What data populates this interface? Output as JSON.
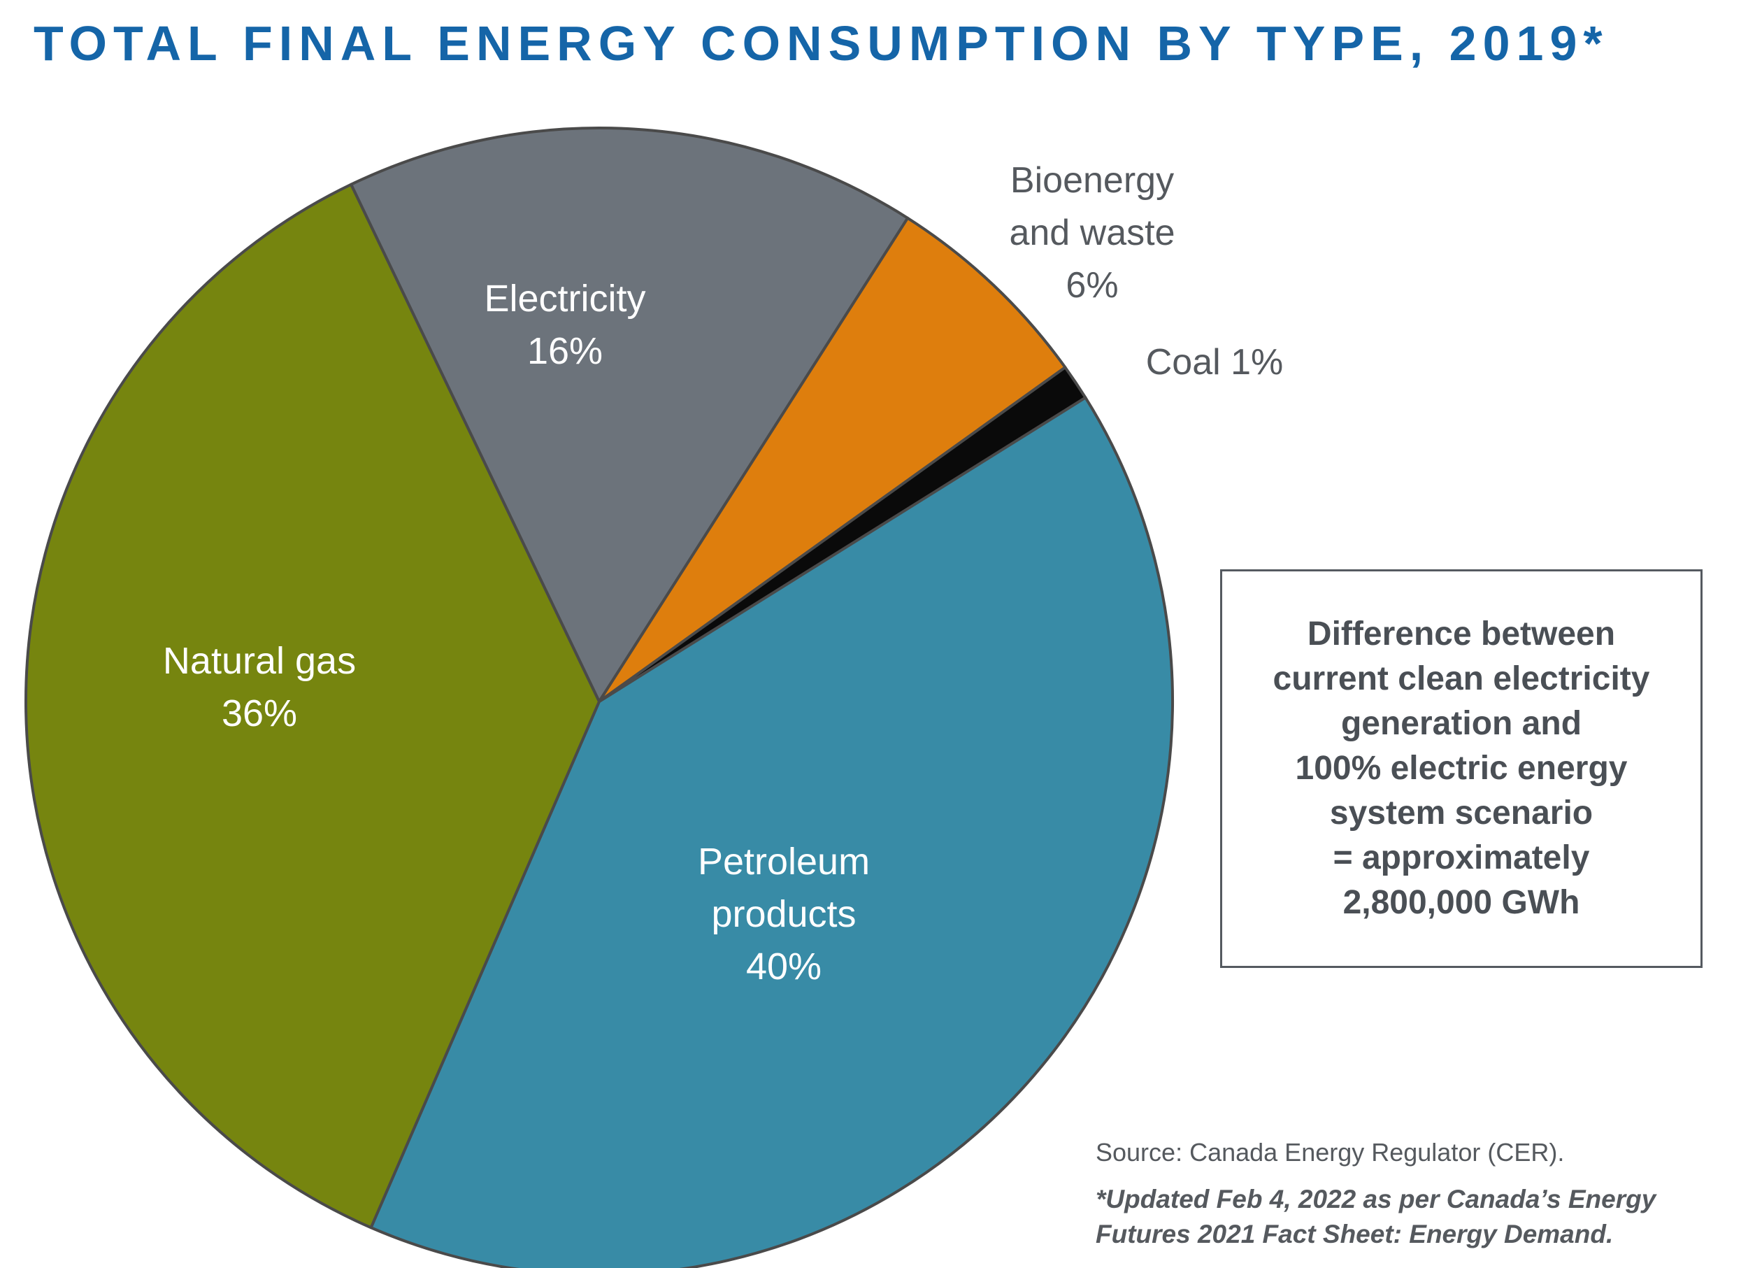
{
  "title": "TOTAL FINAL ENERGY CONSUMPTION BY TYPE, 2019*",
  "chart_data": {
    "type": "pie",
    "title": "TOTAL FINAL ENERGY CONSUMPTION BY TYPE, 2019*",
    "slices": [
      {
        "label": [
          "Petroleum",
          "products",
          "40%"
        ],
        "value": 40,
        "color": "#388ba6",
        "label_color": "#ffffff"
      },
      {
        "label": [
          "Natural gas",
          "36%"
        ],
        "value": 36,
        "color": "#76850f",
        "label_color": "#ffffff"
      },
      {
        "label": [
          "Electricity",
          "16%"
        ],
        "value": 16,
        "color": "#6c737b",
        "label_color": "#ffffff"
      },
      {
        "label": [
          "Bioenergy",
          "and waste",
          "6%"
        ],
        "value": 6,
        "color": "#de7e0d",
        "label_color": "#55595e"
      },
      {
        "label": [
          "Coal 1%"
        ],
        "value": 1,
        "color": "#0a0a0a",
        "label_color": "#55595e"
      }
    ],
    "border_color": "#4a4a4a"
  },
  "note": {
    "text": "Difference between\ncurrent clean electricity\ngeneration and\n100% electric energy\nsystem scenario\n= approximately\n2,800,000 GWh"
  },
  "source": "Source: Canada Energy Regulator (CER).",
  "footnote": "*Updated Feb 4, 2022 as per Canada’s Energy\nFutures 2021 Fact Sheet:  Energy Demand."
}
